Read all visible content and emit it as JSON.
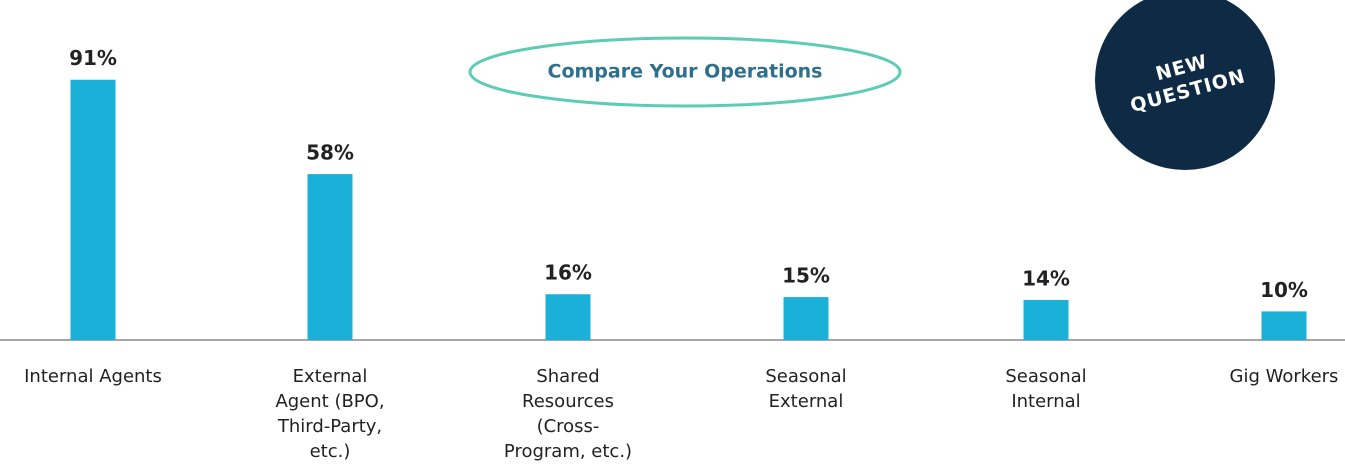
{
  "chart_data": {
    "type": "bar",
    "categories": [
      [
        "Internal Agents"
      ],
      [
        "External",
        "Agent (BPO,",
        "Third-Party,",
        "etc.)"
      ],
      [
        "Shared",
        "Resources",
        "(Cross-",
        "Program, etc.)"
      ],
      [
        "Seasonal",
        "External"
      ],
      [
        "Seasonal",
        "Internal"
      ],
      [
        "Gig Workers"
      ]
    ],
    "values": [
      91,
      58,
      16,
      15,
      14,
      10
    ],
    "value_labels": [
      "91%",
      "58%",
      "16%",
      "15%",
      "14%",
      "10%"
    ],
    "color": "#1ab0d8",
    "annotations": {
      "button": "Compare Your Operations",
      "badge": [
        "NEW",
        "QUESTION"
      ]
    }
  }
}
